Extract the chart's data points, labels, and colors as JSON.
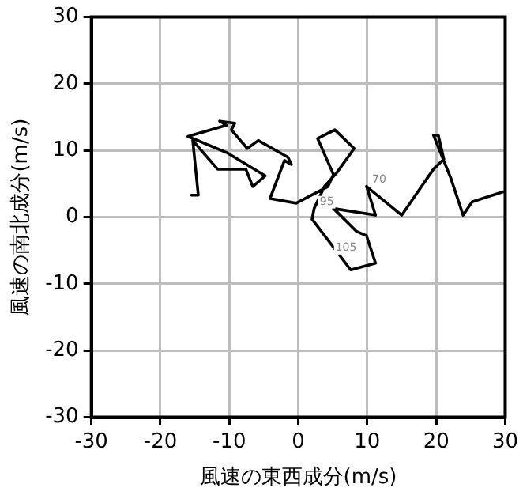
{
  "chart_data": {
    "type": "line",
    "xlabel": "風速の東西成分(m/s)",
    "ylabel": "風速の南北成分(m/s)",
    "x": [
      -15.5,
      -14.5,
      -15.3,
      -11.7,
      -7.6,
      -6.6,
      -4.8,
      -10.4,
      -16.0,
      -10.4,
      -11.4,
      -9.2,
      -9.7,
      -7.4,
      -5.8,
      -1.5,
      -1.0,
      -2.0,
      -4.1,
      -0.3,
      4.3,
      5.1,
      2.8,
      5.3,
      8.1,
      5.6,
      3.8,
      2.3,
      2.0,
      7.6,
      11.2,
      9.9,
      8.4,
      5.1,
      11.2,
      9.9,
      15.0,
      19.6,
      21.1,
      20.3,
      19.6,
      22.1,
      23.9,
      25.2,
      29.7
    ],
    "series": [
      {
        "color": "#000000",
        "values": [
          3.3,
          3.3,
          11.5,
          7.2,
          7.2,
          4.6,
          6.2,
          9.7,
          12.1,
          13.8,
          14.4,
          14.1,
          13.1,
          10.3,
          11.5,
          9.0,
          7.9,
          8.5,
          2.8,
          2.1,
          4.6,
          6.4,
          11.8,
          13.1,
          10.3,
          6.7,
          4.6,
          1.3,
          -0.3,
          -7.9,
          -6.9,
          -2.8,
          -2.1,
          1.3,
          0.3,
          4.6,
          0.3,
          7.2,
          8.7,
          12.3,
          12.3,
          5.9,
          0.3,
          2.3,
          3.8
        ]
      }
    ],
    "annotations": [
      {
        "text": "70",
        "x": 9.9,
        "y": 4.6
      },
      {
        "text": "95",
        "x": 2.3,
        "y": 1.3
      },
      {
        "text": "105",
        "x": 5.1,
        "y": -5.6
      }
    ],
    "xlim": [
      -30,
      30
    ],
    "ylim": [
      -30,
      30
    ],
    "xticks": [
      -30,
      -20,
      -10,
      0,
      10,
      20,
      30
    ],
    "yticks": [
      -30,
      -20,
      -10,
      0,
      10,
      20,
      30
    ],
    "grid": true,
    "legend": false,
    "marker": "none",
    "line_style": "solid"
  }
}
